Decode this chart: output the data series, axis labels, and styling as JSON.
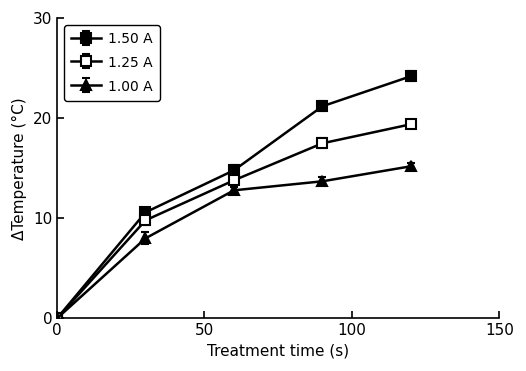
{
  "x": [
    0,
    30,
    60,
    90,
    120
  ],
  "series": [
    {
      "label": "1.50 A",
      "y": [
        0,
        10.6,
        14.8,
        21.2,
        24.2
      ],
      "yerr": [
        0,
        0.4,
        0.5,
        0.5,
        0.5
      ],
      "marker": "s",
      "fillstyle": "full",
      "color": "black"
    },
    {
      "label": "1.25 A",
      "y": [
        0,
        9.8,
        13.8,
        17.5,
        19.4
      ],
      "yerr": [
        0,
        0.5,
        0.4,
        0.5,
        0.4
      ],
      "marker": "s",
      "fillstyle": "none",
      "color": "black"
    },
    {
      "label": "1.00 A",
      "y": [
        0,
        8.0,
        12.8,
        13.7,
        15.2
      ],
      "yerr": [
        0,
        0.6,
        0.3,
        0.4,
        0.3
      ],
      "marker": "^",
      "fillstyle": "full",
      "color": "black"
    }
  ],
  "xlabel": "Treatment time (s)",
  "ylabel": "ΔTemperature (°C)",
  "xlim": [
    0,
    150
  ],
  "ylim": [
    0,
    30
  ],
  "xticks": [
    0,
    50,
    100,
    150
  ],
  "yticks": [
    0,
    10,
    20,
    30
  ],
  "linewidth": 1.8,
  "markersize": 7,
  "legend_loc": "upper left",
  "background_color": "#ffffff",
  "font_family": "Arial",
  "font_size": 11
}
